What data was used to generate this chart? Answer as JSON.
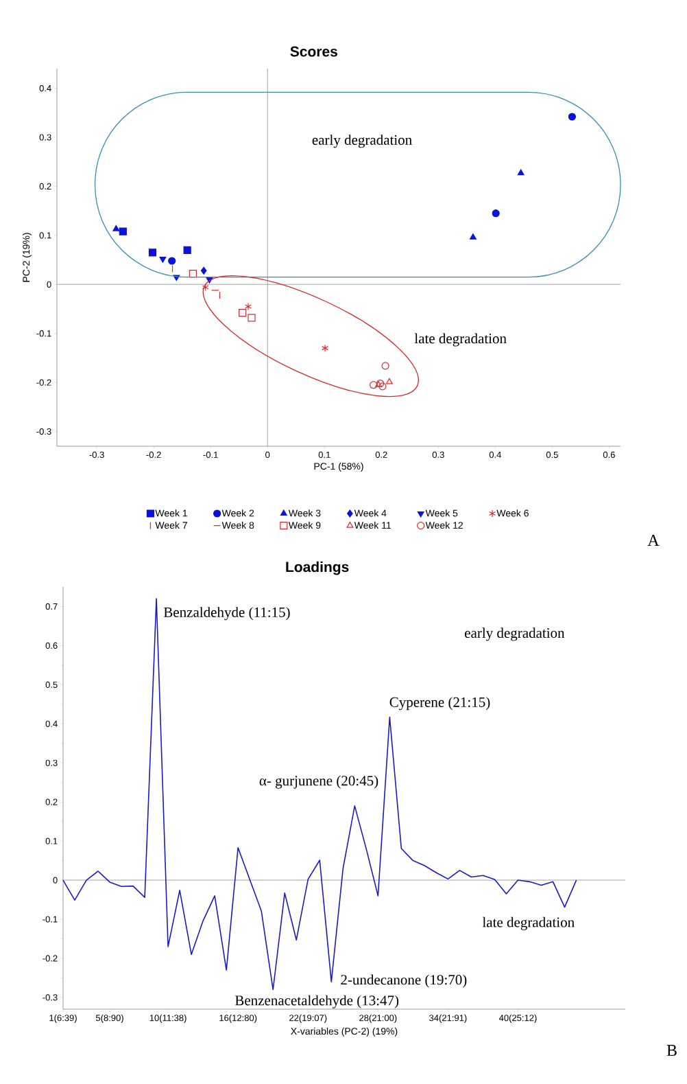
{
  "chart_data": [
    {
      "type": "scatter",
      "title": "Scores",
      "xlabel": "PC-1 (58%)",
      "ylabel": "PC-2 (19%)",
      "xlim": [
        -0.37,
        0.62
      ],
      "ylim": [
        -0.33,
        0.44
      ],
      "xticks": [
        -0.3,
        -0.2,
        -0.1,
        0,
        0.1,
        0.2,
        0.3,
        0.4,
        0.5,
        0.6
      ],
      "yticks": [
        -0.3,
        -0.2,
        -0.1,
        0,
        0.1,
        0.2,
        0.3,
        0.4
      ],
      "legend": "bottom",
      "ref_lines": [
        {
          "axis": "x",
          "value": 0,
          "color": "#8c8c8c"
        },
        {
          "axis": "y",
          "value": 0,
          "color": "#8c8c8c"
        }
      ],
      "annotations": [
        "early degradation",
        "late degradation",
        "A"
      ],
      "series": [
        {
          "name": "Week 1",
          "color": "#0a14d8",
          "marker": "square",
          "x": [
            -0.254,
            -0.202,
            -0.141
          ],
          "values": [
            0.108,
            0.065,
            0.07
          ]
        },
        {
          "name": "Week 2",
          "color": "#0a14d8",
          "marker": "circle",
          "x": [
            -0.168,
            0.401,
            0.535
          ],
          "values": [
            0.048,
            0.145,
            0.342
          ]
        },
        {
          "name": "Week 3",
          "color": "#0a14d8",
          "marker": "triangle",
          "x": [
            -0.266,
            0.361,
            0.445
          ],
          "values": [
            0.113,
            0.096,
            0.227
          ]
        },
        {
          "name": "Week 4",
          "color": "#0a14d8",
          "marker": "diamond",
          "x": [
            -0.112
          ],
          "values": [
            0.028
          ]
        },
        {
          "name": "Week 5",
          "color": "#0a14d8",
          "marker": "triangle-down",
          "x": [
            -0.184,
            -0.16,
            -0.102
          ],
          "values": [
            0.052,
            0.015,
            0.01
          ]
        },
        {
          "name": "Week 6",
          "color": "#e0282c",
          "marker": "cross",
          "x": [
            -0.109,
            -0.034,
            0.101
          ],
          "values": [
            -0.006,
            -0.045,
            -0.13
          ]
        },
        {
          "name": "Week 7",
          "color": "#e0282c",
          "x": [
            -0.167,
            -0.084
          ],
          "values": [
            0.032,
            -0.022
          ]
        },
        {
          "name": "Week 8",
          "color": "#e0282c",
          "x": [
            -0.092
          ],
          "values": [
            -0.012
          ]
        },
        {
          "name": "Week 9",
          "color": "#e0282c",
          "marker": "square-open",
          "x": [
            -0.131,
            -0.044,
            -0.028
          ],
          "values": [
            0.022,
            -0.058,
            -0.068
          ]
        },
        {
          "name": "Week 11",
          "color": "#e0282c",
          "marker": "triangle-open",
          "x": [
            0.214,
            0.195
          ],
          "values": [
            -0.199,
            -0.205
          ]
        },
        {
          "name": "Week 12",
          "color": "#e0282c",
          "marker": "circle-open",
          "x": [
            0.207,
            0.186,
            0.202,
            0.198
          ],
          "values": [
            -0.166,
            -0.205,
            -0.208,
            -0.202
          ]
        }
      ]
    },
    {
      "type": "line",
      "title": "Loadings",
      "xlabel": "X-variables (PC-2) (19%)",
      "ylim": [
        -0.33,
        0.75
      ],
      "categories": [
        "1(6:39)",
        null,
        null,
        null,
        "5(8:90)",
        null,
        null,
        null,
        null,
        "10(11:38)",
        null,
        null,
        null,
        null,
        null,
        "16(12:80)",
        null,
        null,
        null,
        null,
        null,
        "22(19:07)",
        null,
        null,
        null,
        null,
        null,
        "28(21:00)",
        null,
        null,
        null,
        null,
        null,
        "34(21:91)",
        null,
        null,
        null,
        null,
        null,
        "40(25:12)",
        null,
        null,
        null,
        null,
        null
      ],
      "yticks": [
        -0.3,
        -0.2,
        -0.1,
        0,
        0.1,
        0.2,
        0.3,
        0.4,
        0.5,
        0.6,
        0.7
      ],
      "ref_lines": [
        {
          "axis": "y",
          "value": 0,
          "color": "#8c8c8c"
        }
      ],
      "annotations": [
        "Benzaldehyde (11:15)",
        "Cyperene (21:15)",
        "α- gurjunene (20:45)",
        "2-undecanone  (19:70)",
        "Benzenacetaldehyde (13:47)",
        "early degradation",
        "late degradation",
        "B"
      ],
      "series": [
        {
          "color": "#1a1ac8",
          "values": [
            0,
            -0.051,
            0,
            0.023,
            -0.005,
            -0.016,
            -0.015,
            -0.044,
            0.72,
            -0.17,
            -0.026,
            -0.19,
            -0.104,
            -0.04,
            -0.23,
            0.083,
            0.002,
            -0.079,
            -0.28,
            -0.033,
            -0.153,
            0.002,
            0.051,
            -0.26,
            0.03,
            0.19,
            0.079,
            -0.04,
            0.417,
            0.081,
            0.05,
            0.037,
            0.019,
            0.003,
            0.025,
            0.008,
            0.012,
            0.002,
            -0.035,
            0,
            -0.004,
            -0.013,
            -0.004,
            -0.069,
            0
          ]
        }
      ]
    }
  ]
}
